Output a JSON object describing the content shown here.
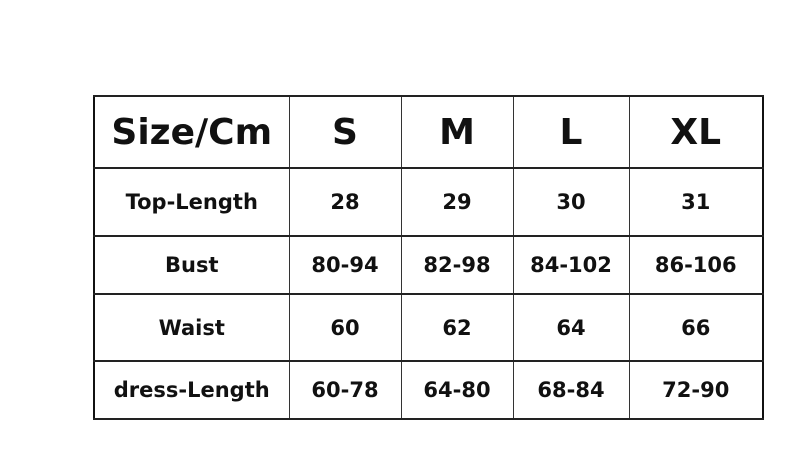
{
  "size_chart": {
    "header": [
      "Size/Cm",
      "S",
      "M",
      "L",
      "XL"
    ],
    "rows": [
      {
        "label": "Top-Length",
        "values": [
          "28",
          "29",
          "30",
          "31"
        ]
      },
      {
        "label": "Bust",
        "values": [
          "80-94",
          "82-98",
          "84-102",
          "86-106"
        ]
      },
      {
        "label": "Waist",
        "values": [
          "60",
          "62",
          "64",
          "66"
        ]
      },
      {
        "label": "dress-Length",
        "values": [
          "60-78",
          "64-80",
          "68-84",
          "72-90"
        ]
      }
    ]
  }
}
